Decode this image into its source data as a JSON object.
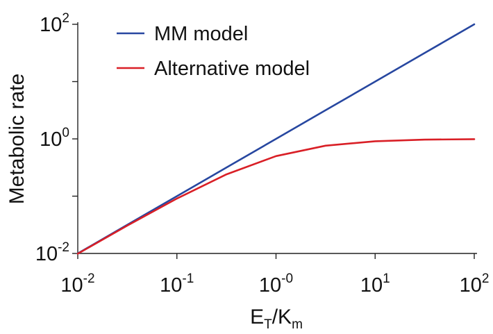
{
  "chart_data": {
    "type": "line",
    "xscale": "log",
    "yscale": "log",
    "xlim": [
      0.01,
      100
    ],
    "ylim": [
      0.01,
      100
    ],
    "xlabel": {
      "main": "E",
      "sub1": "T",
      "slash": "/K",
      "sub2": "m"
    },
    "ylabel": "Metabolic rate",
    "xticks": [
      {
        "value": 0.01,
        "base": "10",
        "exp": "-2"
      },
      {
        "value": 0.1,
        "base": "10",
        "exp": "-1"
      },
      {
        "value": 1,
        "base": "10",
        "exp": "-0"
      },
      {
        "value": 10,
        "base": "10",
        "exp": "1"
      },
      {
        "value": 100,
        "base": "10",
        "exp": "2"
      }
    ],
    "yticks_major": [
      {
        "value": 0.01,
        "base": "10",
        "exp": "-2"
      },
      {
        "value": 1,
        "base": "10",
        "exp": "0"
      },
      {
        "value": 100,
        "base": "10",
        "exp": "2"
      }
    ],
    "yticks_minor": [
      0.1,
      10
    ],
    "legend_position": "top-left",
    "series": [
      {
        "name": "MM model",
        "color": "#2747a0",
        "x": [
          0.01,
          0.0316,
          0.1,
          0.316,
          1,
          3.16,
          10,
          31.6,
          100
        ],
        "y": [
          0.01,
          0.0316,
          0.1,
          0.316,
          1,
          3.16,
          10,
          31.6,
          100
        ]
      },
      {
        "name": "Alternative model",
        "color": "#d91f26",
        "x": [
          0.01,
          0.0316,
          0.1,
          0.316,
          1,
          3.16,
          10,
          31.6,
          100
        ],
        "y": [
          0.0099,
          0.0306,
          0.0909,
          0.24,
          0.5,
          0.76,
          0.909,
          0.969,
          0.99
        ]
      }
    ]
  }
}
